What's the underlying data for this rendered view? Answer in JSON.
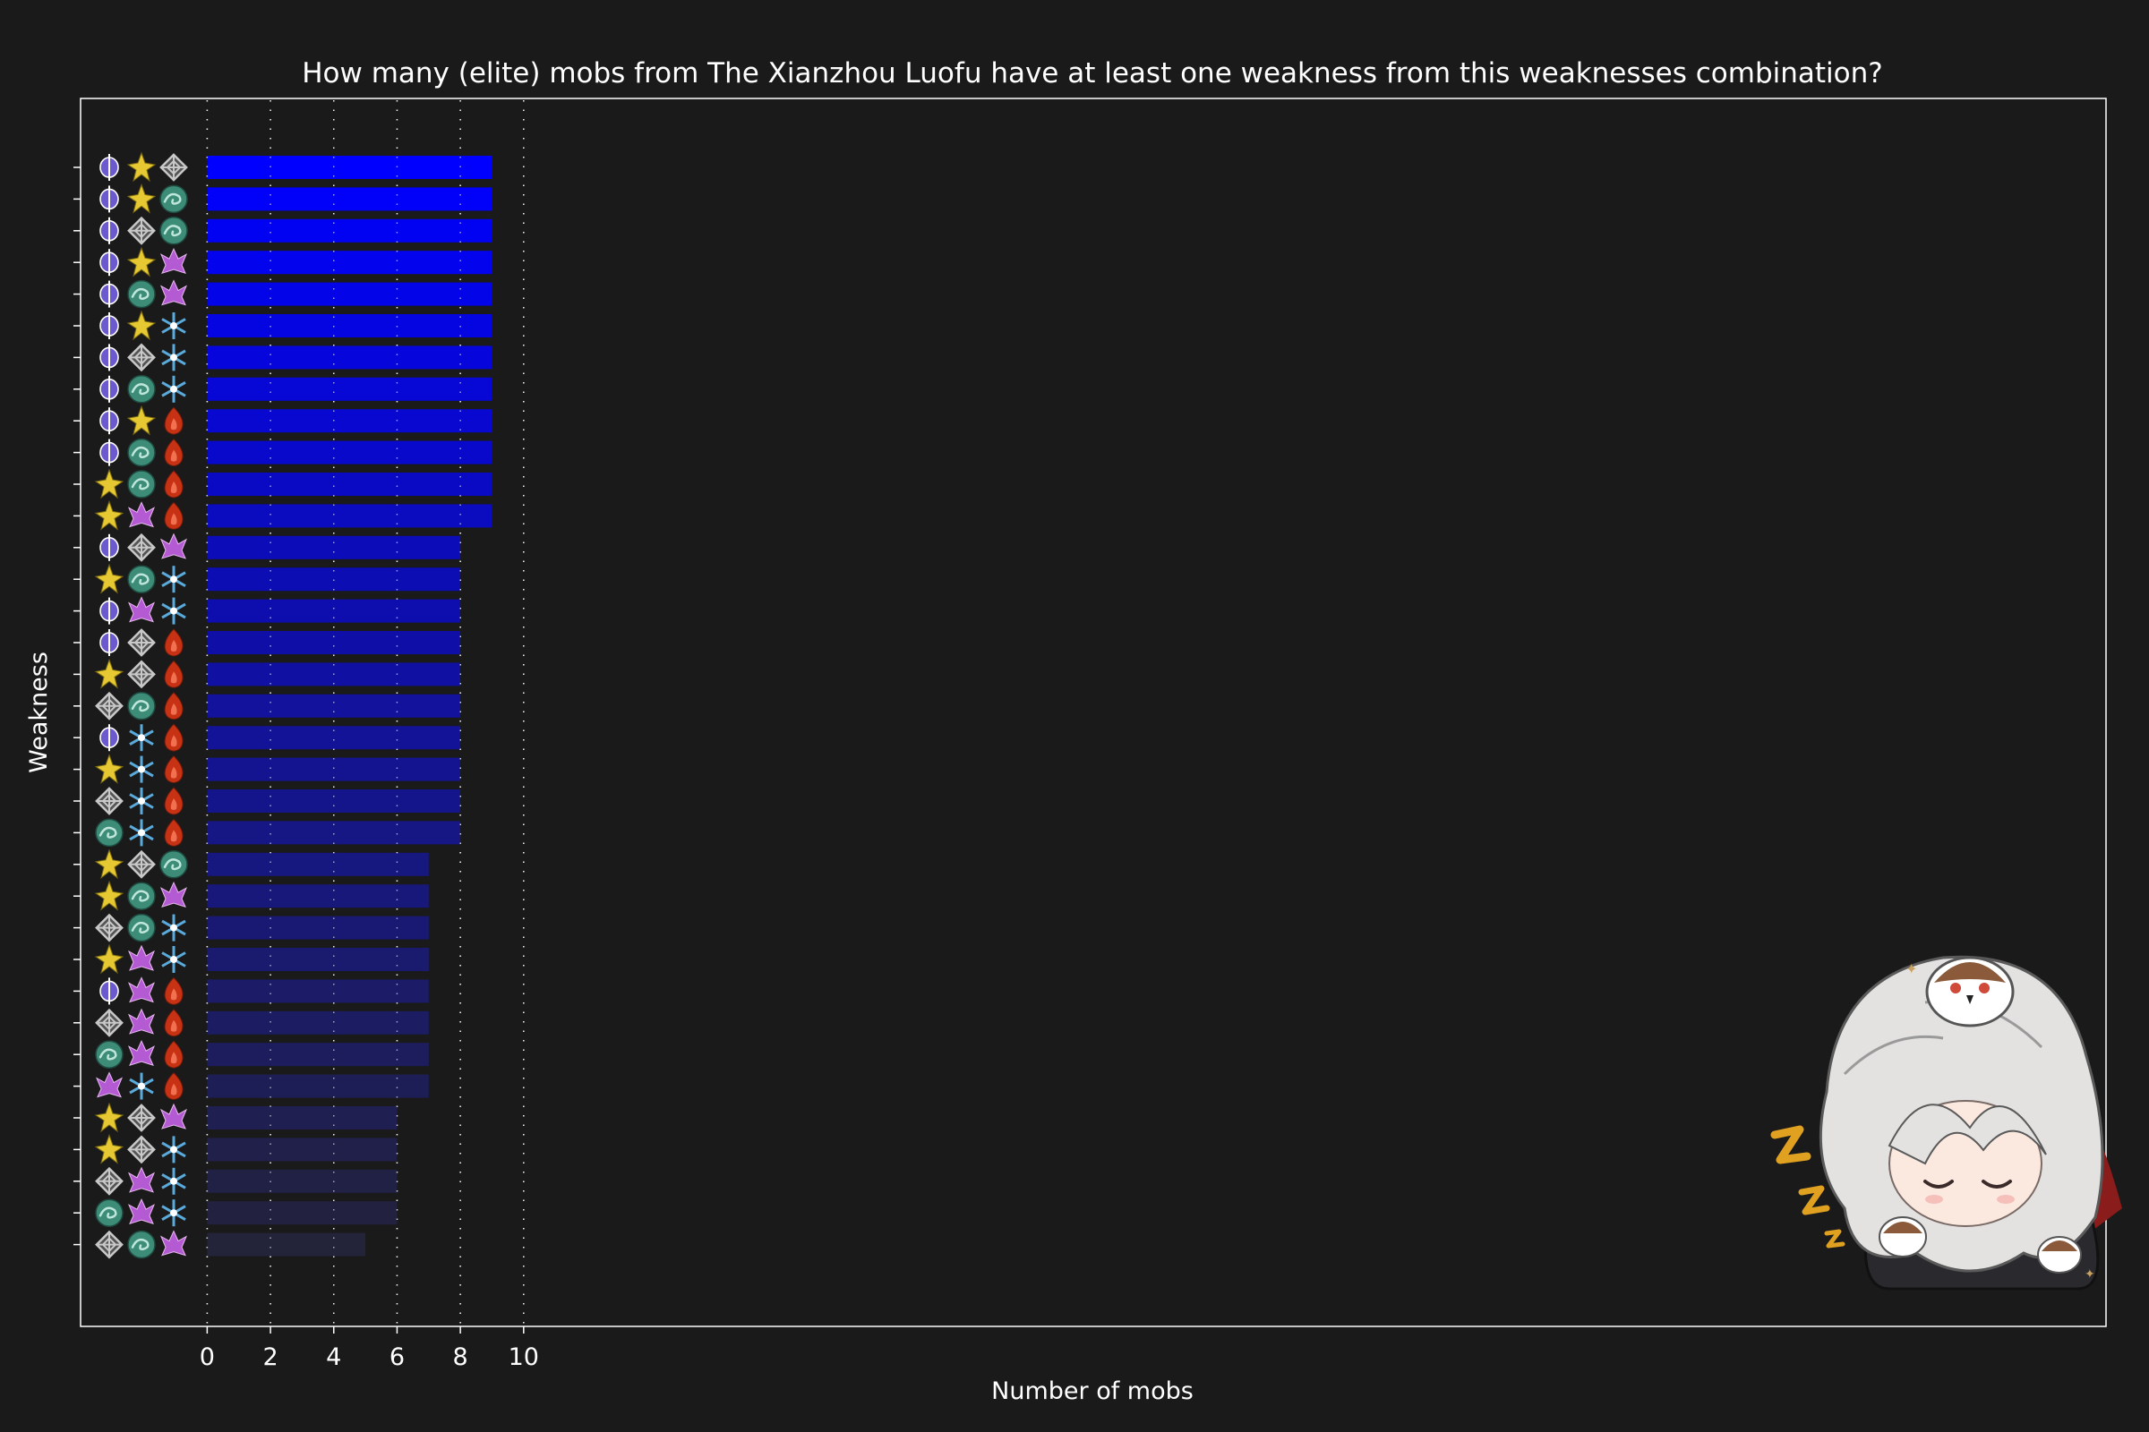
{
  "chart_data": {
    "type": "bar",
    "orientation": "horizontal",
    "title": "How many (elite) mobs from The Xianzhou Luofu have at least one weakness from this weaknesses combination?",
    "xlabel": "Number of mobs",
    "ylabel": "Weakness",
    "xlim": [
      -4,
      60
    ],
    "xticks": [
      0,
      2,
      4,
      6,
      8,
      10
    ],
    "grid": "x-dotted",
    "categories": [
      [
        "imaginary",
        "quantum",
        "physical"
      ],
      [
        "imaginary",
        "quantum",
        "wind"
      ],
      [
        "imaginary",
        "physical",
        "wind"
      ],
      [
        "imaginary",
        "quantum",
        "lightning"
      ],
      [
        "imaginary",
        "wind",
        "lightning"
      ],
      [
        "imaginary",
        "quantum",
        "ice"
      ],
      [
        "imaginary",
        "physical",
        "ice"
      ],
      [
        "imaginary",
        "wind",
        "ice"
      ],
      [
        "imaginary",
        "quantum",
        "fire"
      ],
      [
        "imaginary",
        "wind",
        "fire"
      ],
      [
        "quantum",
        "wind",
        "fire"
      ],
      [
        "quantum",
        "lightning",
        "fire"
      ],
      [
        "imaginary",
        "physical",
        "lightning"
      ],
      [
        "quantum",
        "wind",
        "ice"
      ],
      [
        "imaginary",
        "lightning",
        "ice"
      ],
      [
        "imaginary",
        "physical",
        "fire"
      ],
      [
        "quantum",
        "physical",
        "fire"
      ],
      [
        "physical",
        "wind",
        "fire"
      ],
      [
        "imaginary",
        "ice",
        "fire"
      ],
      [
        "quantum",
        "ice",
        "fire"
      ],
      [
        "physical",
        "ice",
        "fire"
      ],
      [
        "wind",
        "ice",
        "fire"
      ],
      [
        "quantum",
        "physical",
        "wind"
      ],
      [
        "quantum",
        "wind",
        "lightning"
      ],
      [
        "physical",
        "wind",
        "ice"
      ],
      [
        "quantum",
        "lightning",
        "ice"
      ],
      [
        "imaginary",
        "lightning",
        "fire"
      ],
      [
        "physical",
        "lightning",
        "fire"
      ],
      [
        "wind",
        "lightning",
        "fire"
      ],
      [
        "lightning",
        "ice",
        "fire"
      ],
      [
        "quantum",
        "physical",
        "lightning"
      ],
      [
        "quantum",
        "physical",
        "ice"
      ],
      [
        "physical",
        "lightning",
        "ice"
      ],
      [
        "wind",
        "lightning",
        "ice"
      ],
      [
        "physical",
        "wind",
        "lightning"
      ]
    ],
    "values": [
      9,
      9,
      9,
      9,
      9,
      9,
      9,
      9,
      9,
      9,
      9,
      9,
      8,
      8,
      8,
      8,
      8,
      8,
      8,
      8,
      8,
      8,
      7,
      7,
      7,
      7,
      7,
      7,
      7,
      7,
      6,
      6,
      6,
      6,
      5
    ],
    "bar_color_start": "#0000ff",
    "bar_color_end": "#23233a"
  },
  "colors": {
    "background": "#1a1a1a",
    "foreground": "#ffffff",
    "imaginary": "#6a5acd",
    "quantum": "#e6c832",
    "physical": "#c8c8c8",
    "wind": "#3c8c78",
    "lightning": "#b45ad2",
    "ice": "#5aaadc",
    "fire": "#c83214"
  },
  "mascot": {
    "icon": "sleeping-chibi-character-icon",
    "sleep_text": "Z z z"
  }
}
